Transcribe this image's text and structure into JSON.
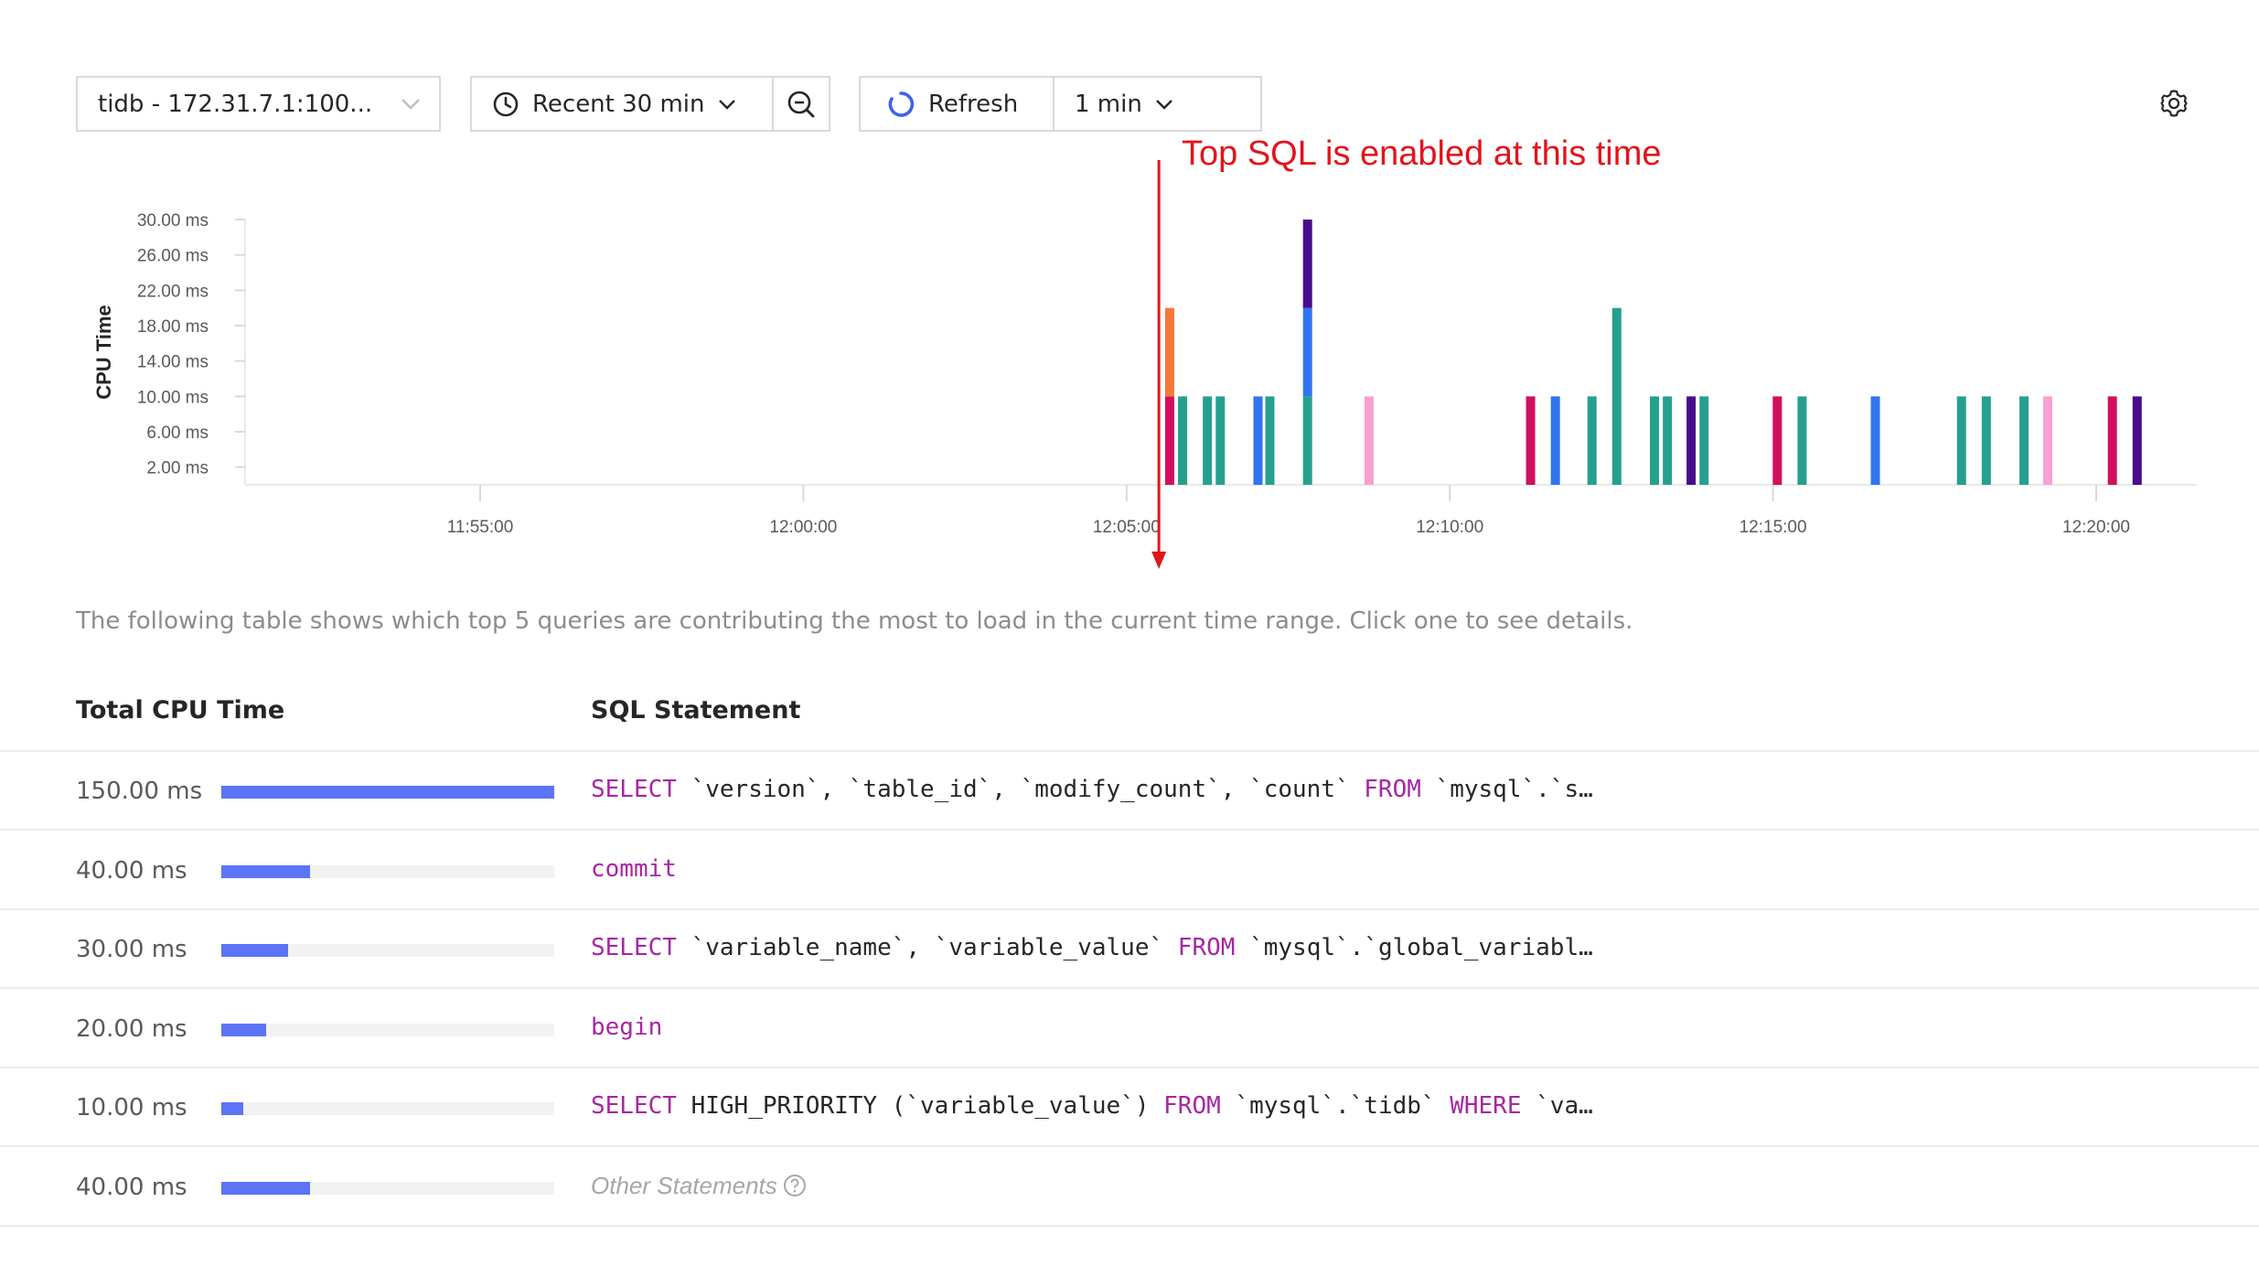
{
  "toolbar": {
    "instance": "tidb - 172.31.7.1:100...",
    "time_range": "Recent 30 min",
    "refresh_label": "Refresh",
    "refresh_interval": "1 min"
  },
  "annotation": {
    "text": "Top SQL is enabled at this time"
  },
  "colors": {
    "accent": "#5c74f5",
    "annotation": "#e3141b",
    "keyword": "#a626a4"
  },
  "chart_data": {
    "type": "bar",
    "stacked": true,
    "ylabel": "CPU Time",
    "yticks": [
      "2.00 ms",
      "6.00 ms",
      "10.00 ms",
      "14.00 ms",
      "18.00 ms",
      "22.00 ms",
      "26.00 ms",
      "30.00 ms"
    ],
    "ytick_values": [
      2,
      6,
      10,
      14,
      18,
      22,
      26,
      30
    ],
    "xticks": [
      "11:55:00",
      "12:00:00",
      "12:05:00",
      "12:10:00",
      "12:15:00",
      "12:20:00"
    ],
    "ylim": [
      0,
      30
    ],
    "grid": false,
    "series_colors": {
      "teal": "#26a08e",
      "blue": "#3174f0",
      "crimson": "#d0105f",
      "purple": "#4a0c8c",
      "orange": "#f5773a",
      "pink": "#f7a1d2"
    },
    "bars": [
      {
        "time": "12:05:40",
        "stack": [
          {
            "color": "crimson",
            "value": 10
          },
          {
            "color": "orange",
            "value": 10
          }
        ]
      },
      {
        "time": "12:05:52",
        "stack": [
          {
            "color": "teal",
            "value": 10
          }
        ]
      },
      {
        "time": "12:06:15",
        "stack": [
          {
            "color": "teal",
            "value": 10
          }
        ]
      },
      {
        "time": "12:06:27",
        "stack": [
          {
            "color": "teal",
            "value": 10
          }
        ]
      },
      {
        "time": "12:07:02",
        "stack": [
          {
            "color": "blue",
            "value": 10
          }
        ]
      },
      {
        "time": "12:07:13",
        "stack": [
          {
            "color": "teal",
            "value": 10
          }
        ]
      },
      {
        "time": "12:07:48",
        "stack": [
          {
            "color": "teal",
            "value": 10
          },
          {
            "color": "blue",
            "value": 10
          },
          {
            "color": "purple",
            "value": 10
          }
        ]
      },
      {
        "time": "12:08:45",
        "stack": [
          {
            "color": "pink",
            "value": 10
          }
        ]
      },
      {
        "time": "12:11:15",
        "stack": [
          {
            "color": "crimson",
            "value": 10
          }
        ]
      },
      {
        "time": "12:11:38",
        "stack": [
          {
            "color": "blue",
            "value": 10
          }
        ]
      },
      {
        "time": "12:12:12",
        "stack": [
          {
            "color": "teal",
            "value": 10
          }
        ]
      },
      {
        "time": "12:12:35",
        "stack": [
          {
            "color": "teal",
            "value": 20
          }
        ]
      },
      {
        "time": "12:13:10",
        "stack": [
          {
            "color": "teal",
            "value": 10
          }
        ]
      },
      {
        "time": "12:13:22",
        "stack": [
          {
            "color": "teal",
            "value": 10
          }
        ]
      },
      {
        "time": "12:13:44",
        "stack": [
          {
            "color": "purple",
            "value": 10
          }
        ]
      },
      {
        "time": "12:13:56",
        "stack": [
          {
            "color": "teal",
            "value": 10
          }
        ]
      },
      {
        "time": "12:15:04",
        "stack": [
          {
            "color": "crimson",
            "value": 10
          }
        ]
      },
      {
        "time": "12:15:27",
        "stack": [
          {
            "color": "teal",
            "value": 10
          }
        ]
      },
      {
        "time": "12:16:35",
        "stack": [
          {
            "color": "blue",
            "value": 10
          }
        ]
      },
      {
        "time": "12:17:55",
        "stack": [
          {
            "color": "teal",
            "value": 10
          }
        ]
      },
      {
        "time": "12:18:18",
        "stack": [
          {
            "color": "teal",
            "value": 10
          }
        ]
      },
      {
        "time": "12:18:53",
        "stack": [
          {
            "color": "teal",
            "value": 10
          }
        ]
      },
      {
        "time": "12:19:15",
        "stack": [
          {
            "color": "pink",
            "value": 10
          }
        ]
      },
      {
        "time": "12:20:15",
        "stack": [
          {
            "color": "crimson",
            "value": 10
          }
        ]
      },
      {
        "time": "12:20:38",
        "stack": [
          {
            "color": "purple",
            "value": 10
          }
        ]
      }
    ],
    "marker_time": "12:05:30"
  },
  "description": "The following table shows which top 5 queries are contributing the most to load in the current time range. Click one to see details.",
  "table": {
    "headers": {
      "cpu": "Total CPU Time",
      "sql": "SQL Statement"
    },
    "max_cpu": 150,
    "rows": [
      {
        "cpu": "150.00 ms",
        "value": 150,
        "sql": [
          {
            "t": "SELECT",
            "k": true
          },
          {
            "t": " `version`, `table_id`, `modify_count`, `count` "
          },
          {
            "t": "FROM",
            "k": true
          },
          {
            "t": " `mysql`.`s…"
          }
        ]
      },
      {
        "cpu": "40.00 ms",
        "value": 40,
        "sql": [
          {
            "t": "commit",
            "k": true
          }
        ]
      },
      {
        "cpu": "30.00 ms",
        "value": 30,
        "sql": [
          {
            "t": "SELECT",
            "k": true
          },
          {
            "t": " `variable_name`, `variable_value` "
          },
          {
            "t": "FROM",
            "k": true
          },
          {
            "t": " `mysql`.`global_variabl…"
          }
        ]
      },
      {
        "cpu": "20.00 ms",
        "value": 20,
        "sql": [
          {
            "t": "begin",
            "k": true
          }
        ]
      },
      {
        "cpu": "10.00 ms",
        "value": 10,
        "sql": [
          {
            "t": "SELECT",
            "k": true
          },
          {
            "t": " HIGH_PRIORITY (`variable_value`) "
          },
          {
            "t": "FROM",
            "k": true
          },
          {
            "t": " `mysql`.`tidb` "
          },
          {
            "t": "WHERE",
            "k": true
          },
          {
            "t": " `va…"
          }
        ]
      },
      {
        "cpu": "40.00 ms",
        "value": 40,
        "other": "Other Statements"
      }
    ]
  }
}
